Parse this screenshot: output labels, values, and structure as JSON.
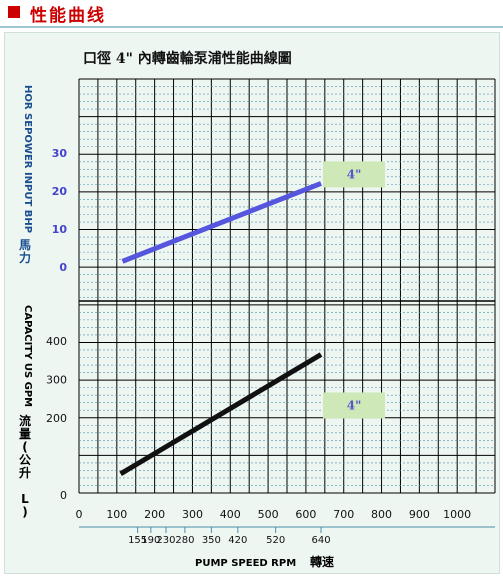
{
  "header": {
    "title": "性能曲线"
  },
  "chart_data": {
    "type": "line",
    "title": "口徑 4\" 內轉齒輪泵浦性能曲線圖",
    "xlabel": "PUMP SPEED RPM",
    "xlabel_cn": "轉速",
    "xlim": [
      0,
      1100
    ],
    "x_ticks": [
      0,
      100,
      200,
      300,
      400,
      500,
      600,
      700,
      800,
      900,
      1000
    ],
    "x_speed_ticks": [
      155,
      190,
      230,
      280,
      350,
      420,
      520,
      640
    ],
    "grid": true,
    "panels": [
      {
        "name": "power",
        "ylabel": "HORSEPOWER INPUT BHP",
        "ylabel_shown": "HOR SEPOWER  INPUT  BHP",
        "ylabel_cn": "馬力",
        "ylim": [
          0,
          30
        ],
        "y_ticks": [
          0,
          10,
          20,
          30
        ],
        "series": [
          {
            "name": "4\"",
            "color": "#5555dd",
            "tag_color": "#5555cc",
            "x": [
              115,
              640
            ],
            "y": [
              1.5,
              22
            ]
          }
        ]
      },
      {
        "name": "capacity",
        "ylabel": "CAPACITY US GPM",
        "ylabel_shown": "CAPACITY  US  GPM",
        "ylabel_cn": "流量(公升 L)",
        "ylim": [
          0,
          400
        ],
        "y_ticks": [
          0,
          200,
          300,
          400
        ],
        "series": [
          {
            "name": "4\"",
            "color": "#111111",
            "tag_color": "#5555cc",
            "x": [
              110,
              640
            ],
            "y": [
              55,
              365
            ]
          }
        ]
      }
    ],
    "colors": {
      "tag_bg": "#cfe8b8",
      "panel_bg": "#eef6f2",
      "grid": "#000000",
      "accent": "#cc0000"
    }
  }
}
